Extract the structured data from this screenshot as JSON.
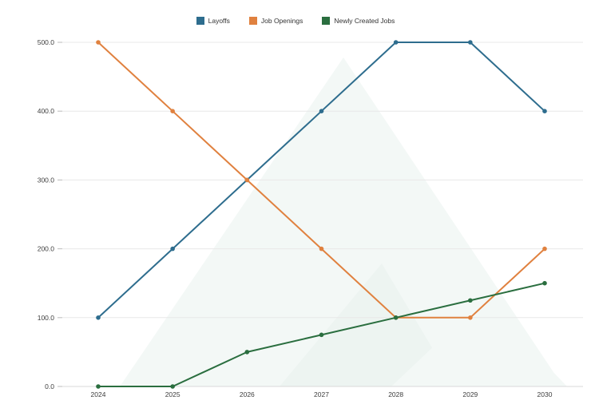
{
  "chart_data": {
    "type": "line",
    "title": "",
    "xlabel": "",
    "ylabel": "",
    "categories": [
      "2024",
      "2025",
      "2026",
      "2027",
      "2028",
      "2029",
      "2030"
    ],
    "series": [
      {
        "name": "Layoffs",
        "color": "#2e6d8e",
        "values": [
          100,
          200,
          300,
          400,
          500,
          500,
          400
        ]
      },
      {
        "name": "Job Openings",
        "color": "#e0813f",
        "values": [
          500,
          400,
          300,
          200,
          100,
          100,
          200
        ]
      },
      {
        "name": "Newly Created Jobs",
        "color": "#2a6e3f",
        "values": [
          0,
          0,
          50,
          75,
          100,
          125,
          150
        ]
      }
    ],
    "y_ticks": [
      0,
      100,
      200,
      300,
      400,
      500
    ],
    "y_tick_labels": [
      "0.0",
      "100.0",
      "200.0",
      "300.0",
      "400.0",
      "500.0"
    ],
    "ylim": [
      0,
      500
    ],
    "grid": true,
    "legend_position": "top-center"
  },
  "styles": {
    "grid_color": "#e8e8e8",
    "axis_line_color": "#d9d9d9",
    "tick_color": "#bbbbbb",
    "tick_label_color": "#3d3d3d",
    "watermark_color_1": "#f3f8f6",
    "watermark_color_2": "#edf4f1",
    "background": "#ffffff"
  }
}
